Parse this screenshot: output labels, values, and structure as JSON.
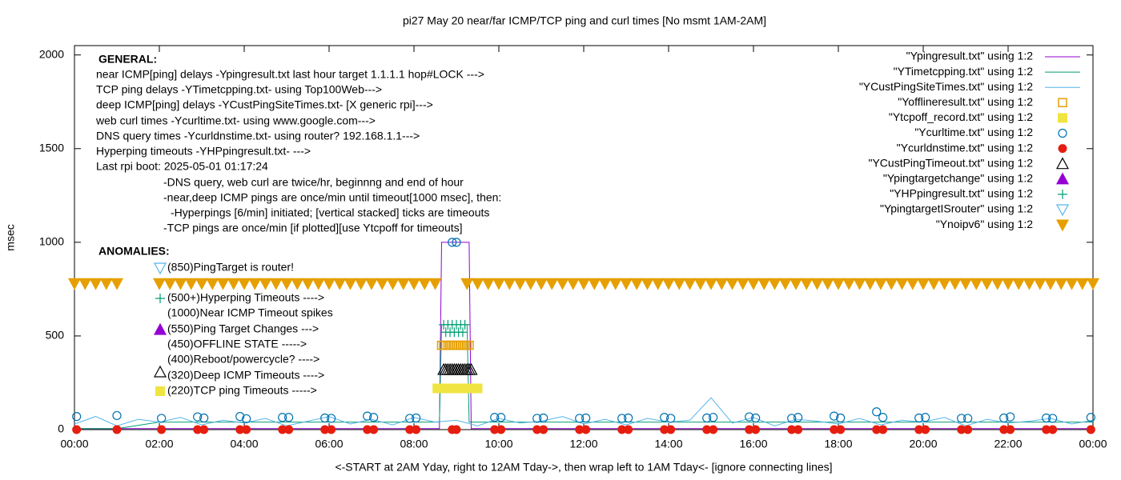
{
  "chart_data": {
    "type": "line",
    "title": "pi27 May 20  near/far ICMP/TCP ping and curl times [No msmt 1AM-2AM]",
    "xlabel": "<-START at 2AM Yday, right to 12AM Tday->, then wrap left to 1AM Tday<- [ignore connecting lines]",
    "ylabel": "msec",
    "xlim": [
      0,
      24
    ],
    "xticks": [
      {
        "value": 0,
        "label": "00:00"
      },
      {
        "value": 2,
        "label": "02:00"
      },
      {
        "value": 4,
        "label": "04:00"
      },
      {
        "value": 6,
        "label": "06:00"
      },
      {
        "value": 8,
        "label": "08:00"
      },
      {
        "value": 10,
        "label": "10:00"
      },
      {
        "value": 12,
        "label": "12:00"
      },
      {
        "value": 14,
        "label": "14:00"
      },
      {
        "value": 16,
        "label": "16:00"
      },
      {
        "value": 18,
        "label": "18:00"
      },
      {
        "value": 20,
        "label": "20:00"
      },
      {
        "value": 22,
        "label": "22:00"
      },
      {
        "value": 24,
        "label": "00:00"
      }
    ],
    "ylim": [
      0,
      2050
    ],
    "yticks": [
      0,
      500,
      1000,
      1500,
      2000
    ],
    "legend": "top-right",
    "annotations": [
      "GENERAL:",
      "near ICMP[ping] delays -Ypingresult.txt last hour target 1.1.1.1 hop#LOCK --->",
      "TCP ping delays -YTimetcpping.txt- using Top100Web--->",
      "deep ICMP[ping] delays -YCustPingSiteTimes.txt- [X generic rpi]--->",
      "web curl times -Ycurltime.txt- using www.google.com--->",
      "DNS query times -Ycurldnstime.txt- using router? 192.168.1.1--->",
      "Hyperping timeouts -YHPpingresult.txt- --->",
      "Last rpi boot: 2025-05-01 01:17:24",
      "-DNS query, web curl are twice/hr, beginnng and end of hour",
      "-near,deep ICMP pings are once/min until timeout[1000 msec], then:",
      "-Hyperpings [6/min] initiated; [vertical stacked] ticks are timeouts",
      "-TCP pings are once/min [if plotted][use Ytcpoff for timeouts]",
      "ANOMALIES:",
      "(850)PingTarget is router!",
      "(500+)Hyperping Timeouts ---->",
      "(1000)Near ICMP Timeout spikes",
      "(550)Ping Target Changes --->",
      "(450)OFFLINE STATE ----->",
      "(400)Reboot/powercycle? ---->",
      "(320)Deep ICMP Timeouts ---->",
      "(220)TCP ping Timeouts ----->"
    ],
    "series": [
      {
        "name": "\"Ypingresult.txt\" using 1:2",
        "color": "#9400d3",
        "marker": "line",
        "x": [
          0,
          1.1,
          2,
          8.6,
          8.65,
          9.3,
          9.35,
          24
        ],
        "values": [
          5,
          5,
          5,
          5,
          1000,
          1000,
          5,
          5
        ]
      },
      {
        "name": "\"YTimetcpping.txt\" using 1:2",
        "color": "#009e73",
        "marker": "line",
        "x": [
          0,
          1,
          2,
          8.6,
          8.65,
          9.25,
          9.3,
          24
        ],
        "values": [
          5,
          5,
          40,
          40,
          560,
          560,
          40,
          40
        ]
      },
      {
        "name": "\"YCustPingSiteTimes.txt\" using 1:2",
        "color": "#56b4e9",
        "marker": "line",
        "x": [
          0,
          0.5,
          1,
          1.5,
          2,
          2.5,
          3,
          3.5,
          4,
          4.5,
          5,
          5.5,
          6,
          6.5,
          7,
          7.5,
          8,
          8.5,
          9,
          9.5,
          10,
          10.5,
          11,
          11.5,
          12,
          12.5,
          13,
          13.5,
          14,
          14.5,
          15,
          15.5,
          16,
          16.5,
          17,
          17.5,
          18,
          18.5,
          19,
          19.5,
          20,
          20.5,
          21,
          21.5,
          22,
          22.5,
          23,
          23.5,
          24
        ],
        "values": [
          30,
          70,
          20,
          55,
          40,
          65,
          25,
          50,
          35,
          60,
          20,
          45,
          70,
          30,
          55,
          25,
          65,
          40,
          50,
          20,
          60,
          35,
          45,
          70,
          30,
          55,
          25,
          60,
          40,
          50,
          170,
          35,
          65,
          20,
          55,
          45,
          30,
          60,
          25,
          50,
          40,
          65,
          20,
          55,
          35,
          45,
          60,
          30,
          50
        ]
      },
      {
        "name": "\"Yofflineresult.txt\" using 1:2",
        "color": "#e69f00",
        "marker": "square-open",
        "x": [
          8.65,
          8.7,
          8.75,
          8.8,
          8.85,
          8.9,
          8.95,
          9,
          9.05,
          9.1,
          9.15,
          9.2,
          9.25,
          9.3
        ],
        "values": [
          450,
          450,
          450,
          450,
          450,
          450,
          450,
          450,
          450,
          450,
          450,
          450,
          450,
          450
        ]
      },
      {
        "name": "\"Ytcpoff_record.txt\" using 1:2",
        "color": "#f0e442",
        "marker": "square",
        "x": [
          8.55,
          8.6,
          8.65,
          8.7,
          8.75,
          8.8,
          8.85,
          8.9,
          8.95,
          9,
          9.05,
          9.1,
          9.15,
          9.2,
          9.25,
          9.3,
          9.35,
          9.4,
          9.45,
          9.5
        ],
        "values": [
          220,
          220,
          220,
          220,
          220,
          220,
          220,
          220,
          220,
          220,
          220,
          220,
          220,
          220,
          220,
          220,
          220,
          220,
          220,
          220
        ]
      },
      {
        "name": "\"Ycurltime.txt\" using 1:2",
        "color": "#0072b2",
        "marker": "circle-open",
        "x": [
          0.05,
          1,
          2.05,
          2.9,
          3.05,
          3.9,
          4.05,
          4.9,
          5.05,
          5.9,
          6.05,
          6.9,
          7.05,
          7.9,
          8.05,
          8.9,
          9,
          9.9,
          10.05,
          10.9,
          11.05,
          11.9,
          12.05,
          12.9,
          13.05,
          13.9,
          14.05,
          14.9,
          15.05,
          15.9,
          16.05,
          16.9,
          17.05,
          17.9,
          18.05,
          18.9,
          19.05,
          19.9,
          20.05,
          20.9,
          21.05,
          21.9,
          22.05,
          22.9,
          23.05,
          23.95
        ],
        "values": [
          70,
          75,
          60,
          68,
          62,
          70,
          58,
          65,
          65,
          62,
          60,
          72,
          65,
          60,
          62,
          1000,
          1000,
          65,
          65,
          60,
          62,
          60,
          62,
          60,
          62,
          65,
          60,
          62,
          65,
          68,
          62,
          60,
          65,
          72,
          62,
          95,
          65,
          62,
          65,
          60,
          60,
          62,
          68,
          62,
          60,
          65
        ]
      },
      {
        "name": "\"Ycurldnstime.txt\" using 1:2",
        "color": "#e51e10",
        "marker": "circle",
        "x": [
          0.05,
          1,
          2.05,
          2.9,
          3.05,
          3.9,
          4.05,
          4.9,
          5.05,
          5.9,
          6.05,
          6.9,
          7.05,
          7.9,
          8.05,
          8.9,
          9,
          9.9,
          10.05,
          10.9,
          11.05,
          11.9,
          12.05,
          12.9,
          13.05,
          13.9,
          14.05,
          14.9,
          15.05,
          15.9,
          16.05,
          16.9,
          17.05,
          17.9,
          18.05,
          18.9,
          19.05,
          19.9,
          20.05,
          20.9,
          21.05,
          21.9,
          22.05,
          22.9,
          23.05,
          23.95
        ],
        "values": [
          0,
          0,
          0,
          0,
          0,
          0,
          0,
          0,
          0,
          0,
          0,
          0,
          0,
          0,
          0,
          0,
          0,
          0,
          0,
          0,
          0,
          0,
          0,
          0,
          0,
          0,
          0,
          0,
          0,
          0,
          0,
          0,
          0,
          0,
          0,
          0,
          0,
          0,
          0,
          0,
          0,
          0,
          0,
          0,
          0,
          0
        ]
      },
      {
        "name": "\"YCustPingTimeout.txt\" using 1:2",
        "color": "#000000",
        "marker": "triangle-open",
        "x": [
          8.7,
          8.75,
          8.8,
          8.85,
          8.9,
          8.95,
          9,
          9.05,
          9.1,
          9.15,
          9.2,
          9.25,
          9.3,
          9.35
        ],
        "values": [
          320,
          320,
          320,
          320,
          320,
          320,
          320,
          320,
          320,
          320,
          320,
          320,
          320,
          320
        ]
      },
      {
        "name": "\"Ypingtargetchange\" using 1:2",
        "color": "#9400d3",
        "marker": "triangle",
        "x": [],
        "values": []
      },
      {
        "name": "\"YHPpingresult.txt\" using 1:2",
        "color": "#009e73",
        "marker": "plus",
        "x": [
          8.7,
          8.75,
          8.8,
          8.85,
          8.9,
          8.95,
          9,
          9.05,
          9.1,
          9.15,
          9.2
        ],
        "values": [
          560,
          520,
          560,
          520,
          560,
          520,
          560,
          520,
          560,
          520,
          560
        ]
      },
      {
        "name": "\"YpingtargetISrouter\" using 1:2",
        "color": "#56b4e9",
        "marker": "triangle-down-open",
        "x": [],
        "values": []
      },
      {
        "name": "\"Ynoipv6\" using 1:2",
        "color": "#e69f00",
        "marker": "triangle-down",
        "x": [
          0,
          0.25,
          0.5,
          0.75,
          1,
          2,
          2.25,
          2.5,
          2.75,
          3,
          3.25,
          3.5,
          3.75,
          4,
          4.25,
          4.5,
          4.75,
          5,
          5.25,
          5.5,
          5.75,
          6,
          6.25,
          6.5,
          6.75,
          7,
          7.25,
          7.5,
          7.75,
          8,
          8.25,
          8.5,
          9.25,
          9.5,
          9.75,
          10,
          10.25,
          10.5,
          10.75,
          11,
          11.25,
          11.5,
          11.75,
          12,
          12.25,
          12.5,
          12.75,
          13,
          13.25,
          13.5,
          13.75,
          14,
          14.25,
          14.5,
          14.75,
          15,
          15.25,
          15.5,
          15.75,
          16,
          16.25,
          16.5,
          16.75,
          17,
          17.25,
          17.5,
          17.75,
          18,
          18.25,
          18.5,
          18.75,
          19,
          19.25,
          19.5,
          19.75,
          20,
          20.25,
          20.5,
          20.75,
          21,
          21.25,
          21.5,
          21.75,
          22,
          22.25,
          22.5,
          22.75,
          23,
          23.25,
          23.5,
          23.75,
          24
        ],
        "values": [
          780,
          780,
          780,
          780,
          780,
          780,
          780,
          780,
          780,
          780,
          780,
          780,
          780,
          780,
          780,
          780,
          780,
          780,
          780,
          780,
          780,
          780,
          780,
          780,
          780,
          780,
          780,
          780,
          780,
          780,
          780,
          780,
          780,
          780,
          780,
          780,
          780,
          780,
          780,
          780,
          780,
          780,
          780,
          780,
          780,
          780,
          780,
          780,
          780,
          780,
          780,
          780,
          780,
          780,
          780,
          780,
          780,
          780,
          780,
          780,
          780,
          780,
          780,
          780,
          780,
          780,
          780,
          780,
          780,
          780,
          780,
          780,
          780,
          780,
          780,
          780,
          780,
          780,
          780,
          780,
          780,
          780,
          780,
          780,
          780,
          780,
          780,
          780,
          780,
          780,
          780,
          780
        ]
      }
    ]
  }
}
